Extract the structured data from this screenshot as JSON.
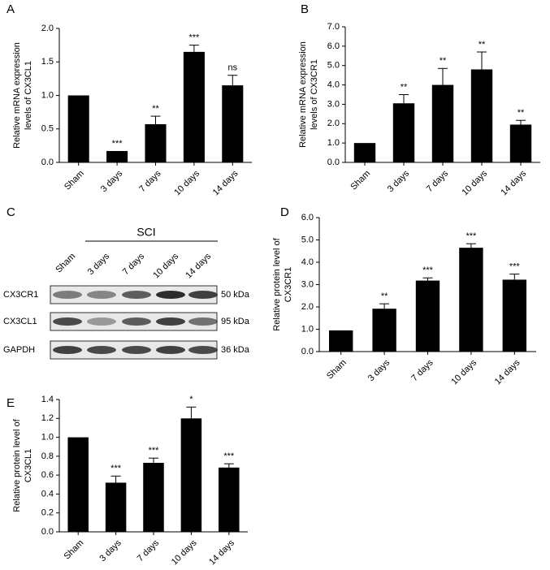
{
  "chart_data": [
    {
      "type": "bar",
      "panel_label": "A",
      "ylabel_lines": [
        "Relative mRNA expression",
        "levels of CX3CL1"
      ],
      "categories": [
        "Sham",
        "3 days",
        "7 days",
        "10 days",
        "14 days"
      ],
      "values": [
        1.0,
        0.17,
        0.57,
        1.65,
        1.15
      ],
      "errors": [
        null,
        null,
        0.12,
        0.1,
        0.15
      ],
      "significance": [
        null,
        "***",
        "**",
        "***",
        "ns"
      ],
      "color": "#000000",
      "ylim": [
        0,
        2
      ],
      "yticks": [
        {
          "value": 0,
          "label": "0.0"
        },
        {
          "value": 0.5,
          "label": "0.5"
        },
        {
          "value": 1,
          "label": "1.0"
        },
        {
          "value": 1.5,
          "label": "1.5"
        },
        {
          "value": 2,
          "label": "2.0"
        }
      ]
    },
    {
      "type": "bar",
      "panel_label": "B",
      "ylabel_lines": [
        "Relative mRNA expression",
        "levels of CX3CR1"
      ],
      "categories": [
        "Sham",
        "3 days",
        "7 days",
        "10 days",
        "14 days"
      ],
      "values": [
        1.0,
        3.05,
        4.0,
        4.8,
        1.95
      ],
      "errors": [
        null,
        0.45,
        0.85,
        0.9,
        0.22
      ],
      "significance": [
        null,
        "**",
        "**",
        "**",
        "**"
      ],
      "color": "#000000",
      "ylim": [
        0,
        7
      ],
      "yticks": [
        {
          "value": 0,
          "label": "0.0"
        },
        {
          "value": 1,
          "label": "1.0"
        },
        {
          "value": 2,
          "label": "2.0"
        },
        {
          "value": 3,
          "label": "3.0"
        },
        {
          "value": 4,
          "label": "4.0"
        },
        {
          "value": 5,
          "label": "5.0"
        },
        {
          "value": 6,
          "label": "6.0"
        },
        {
          "value": 7,
          "label": "7.0"
        }
      ]
    },
    {
      "type": "bar",
      "panel_label": "D",
      "ylabel_lines": [
        "Relative protein level of",
        "CX3CR1"
      ],
      "categories": [
        "Sham",
        "3 days",
        "7 days",
        "10 days",
        "14 days"
      ],
      "values": [
        0.95,
        1.92,
        3.18,
        4.65,
        3.22
      ],
      "errors": [
        null,
        0.22,
        0.12,
        0.18,
        0.25
      ],
      "significance": [
        null,
        "**",
        "***",
        "***",
        "***"
      ],
      "color": "#000000",
      "ylim": [
        0,
        6
      ],
      "yticks": [
        {
          "value": 0,
          "label": "0.0"
        },
        {
          "value": 1,
          "label": "1.0"
        },
        {
          "value": 2,
          "label": "2.0"
        },
        {
          "value": 3,
          "label": "3.0"
        },
        {
          "value": 4,
          "label": "4.0"
        },
        {
          "value": 5,
          "label": "5.0"
        },
        {
          "value": 6,
          "label": "6.0"
        }
      ]
    },
    {
      "type": "bar",
      "panel_label": "E",
      "ylabel_lines": [
        "Relative protein level of",
        "CX3CL1"
      ],
      "categories": [
        "Sham",
        "3 days",
        "7 days",
        "10 days",
        "14 days"
      ],
      "values": [
        1.0,
        0.52,
        0.73,
        1.2,
        0.68
      ],
      "errors": [
        null,
        0.07,
        0.05,
        0.12,
        0.04
      ],
      "significance": [
        null,
        "***",
        "***",
        "*",
        "***"
      ],
      "color": "#000000",
      "ylim": [
        0,
        1.4
      ],
      "yticks": [
        {
          "value": 0,
          "label": "0.0"
        },
        {
          "value": 0.2,
          "label": "0.2"
        },
        {
          "value": 0.4,
          "label": "0.4"
        },
        {
          "value": 0.6,
          "label": "0.6"
        },
        {
          "value": 0.8,
          "label": "0.8"
        },
        {
          "value": 1,
          "label": "1.0"
        },
        {
          "value": 1.2,
          "label": "1.2"
        },
        {
          "value": 1.4,
          "label": "1.4"
        }
      ]
    }
  ],
  "blot": {
    "panel_label": "C",
    "group_label": "SCI",
    "lanes": [
      "Sham",
      "3 days",
      "7 days",
      "10 days",
      "14 days"
    ],
    "rows": [
      {
        "name": "CX3CR1",
        "size": "50 kDa"
      },
      {
        "name": "CX3CL1",
        "size": "95 kDa"
      },
      {
        "name": "GAPDH",
        "size": "36 kDa"
      }
    ]
  }
}
